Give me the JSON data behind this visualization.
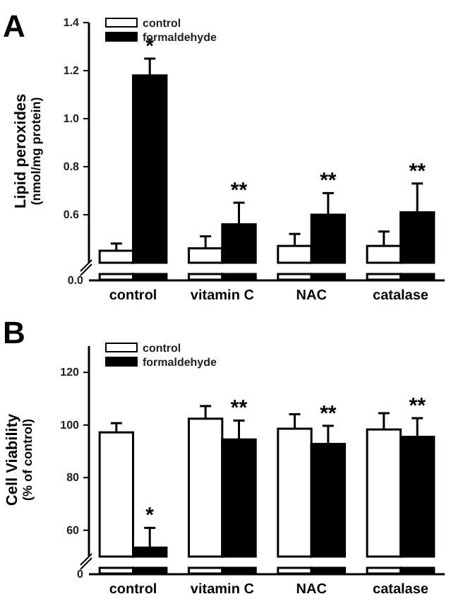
{
  "chart_data": [
    {
      "type": "bar",
      "title": "A",
      "ylabel": "Lipid peroxides\n(nmol/mg protein)",
      "categories": [
        "control",
        "vitamin C",
        "NAC",
        "catalase"
      ],
      "ylim": [
        0.4,
        1.4
      ],
      "yticks": [
        0.6,
        0.8,
        {
          "value": 1.0,
          "label": "1.0"
        },
        1.2,
        1.4
      ],
      "legend": "top left",
      "series": [
        {
          "name": "control",
          "color": "#ffffff",
          "values": [
            0.45,
            0.46,
            0.47,
            0.47
          ],
          "errors": [
            [
              0.45,
              0.48
            ],
            [
              0.46,
              0.51
            ],
            [
              0.47,
              0.52
            ],
            [
              0.47,
              0.53
            ]
          ]
        },
        {
          "name": "formaldehyde",
          "color": "#000000",
          "values": [
            1.18,
            0.56,
            0.6,
            0.61
          ],
          "errors": [
            [
              1.18,
              1.25
            ],
            [
              0.56,
              0.65
            ],
            [
              0.6,
              0.69
            ],
            [
              0.61,
              0.73
            ]
          ]
        }
      ],
      "annotations": [
        "0.0",
        "*",
        "**",
        "**",
        "**"
      ]
    },
    {
      "type": "bar",
      "title": "B",
      "ylabel": "Cell Viability\n(% of control)",
      "categories": [
        "control",
        "vitamin C",
        "NAC",
        "catalase"
      ],
      "ylim": [
        50,
        130
      ],
      "yticks": [
        60,
        80,
        100,
        120
      ],
      "legend": "top left",
      "series": [
        {
          "name": "control",
          "color": "#ffffff",
          "values": [
            97.2,
            102.4,
            98.6,
            98.3
          ],
          "errors": [
            [
              97.2,
              100.7
            ],
            [
              102.4,
              107.2
            ],
            [
              98.6,
              104.1
            ],
            [
              98.3,
              104.5
            ]
          ]
        },
        {
          "name": "formaldehyde",
          "color": "#000000",
          "values": [
            53.4,
            94.5,
            92.8,
            95.5
          ],
          "errors": [
            [
              53.4,
              60.9
            ],
            [
              94.5,
              101.7
            ],
            [
              92.8,
              99.7
            ],
            [
              95.5,
              102.6
            ]
          ]
        }
      ],
      "annotations": [
        "0",
        "*",
        "**",
        "**",
        "**"
      ]
    }
  ]
}
